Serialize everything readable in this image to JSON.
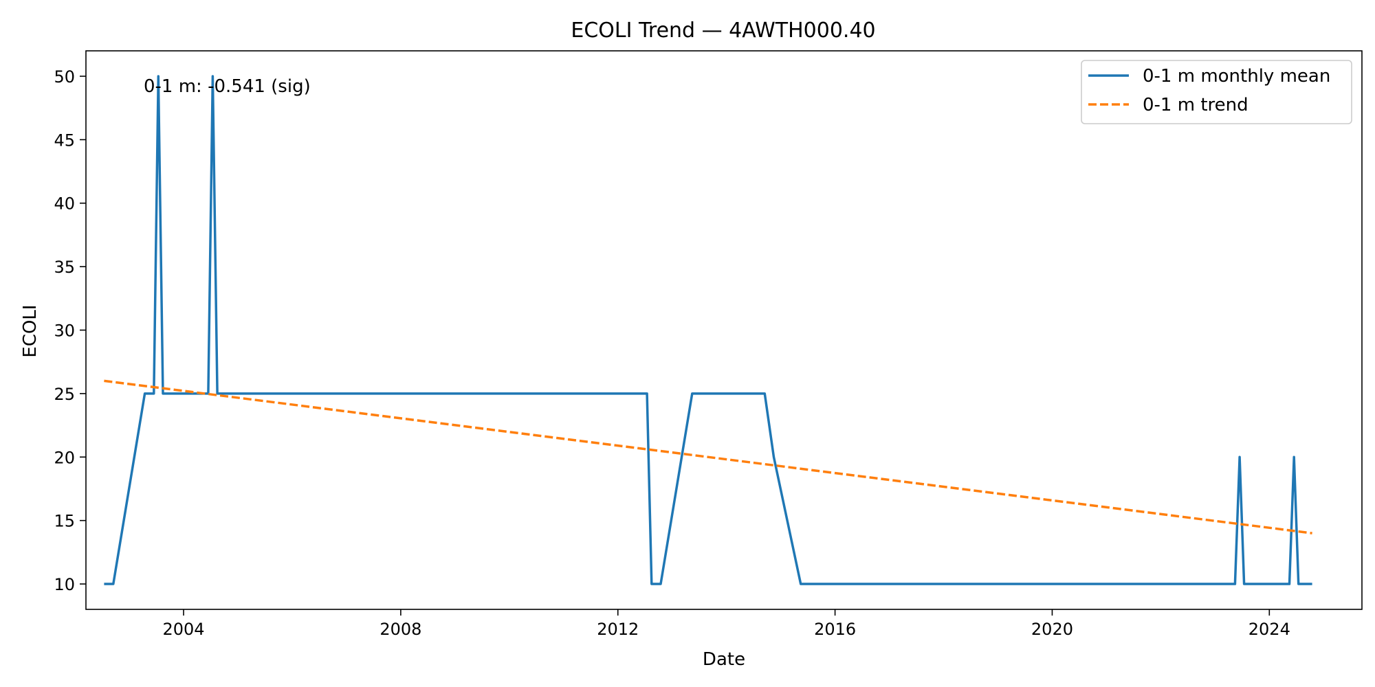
{
  "chart_data": {
    "type": "line",
    "title": "ECOLI Trend — 4AWTH000.40",
    "xlabel": "Date",
    "ylabel": "ECOLI",
    "xlim": [
      "2002-03-15",
      "2025-09-15"
    ],
    "ylim": [
      8,
      52
    ],
    "x_ticks": [
      "2004",
      "2008",
      "2012",
      "2016",
      "2020",
      "2024"
    ],
    "y_ticks": [
      10,
      15,
      20,
      25,
      30,
      35,
      40,
      45,
      50
    ],
    "grid": false,
    "legend_position": "top-right",
    "annotation": "0-1 m: -0.541 (sig)",
    "colors": {
      "mean": "#1f77b4",
      "trend": "#ff7f0e"
    },
    "series": [
      {
        "name": "0-1 m monthly mean",
        "style": "solid",
        "points": [
          [
            "2002-07-15",
            10
          ],
          [
            "2002-09-15",
            10
          ],
          [
            "2003-04-15",
            25
          ],
          [
            "2003-06-15",
            25
          ],
          [
            "2003-07-15",
            50
          ],
          [
            "2003-08-15",
            25
          ],
          [
            "2004-06-15",
            25
          ],
          [
            "2004-07-15",
            50
          ],
          [
            "2004-08-15",
            25
          ],
          [
            "2012-07-15",
            25
          ],
          [
            "2012-08-15",
            10
          ],
          [
            "2012-10-15",
            10
          ],
          [
            "2013-05-15",
            25
          ],
          [
            "2014-09-15",
            25
          ],
          [
            "2014-11-15",
            20
          ],
          [
            "2015-05-15",
            10
          ],
          [
            "2023-05-15",
            10
          ],
          [
            "2023-06-15",
            20
          ],
          [
            "2023-07-15",
            10
          ],
          [
            "2024-05-15",
            10
          ],
          [
            "2024-06-15",
            20
          ],
          [
            "2024-07-15",
            10
          ],
          [
            "2024-10-15",
            10
          ]
        ]
      },
      {
        "name": "0-1 m trend",
        "style": "dashed",
        "points": [
          [
            "2002-07-15",
            26
          ],
          [
            "2024-10-15",
            14
          ]
        ]
      }
    ]
  }
}
